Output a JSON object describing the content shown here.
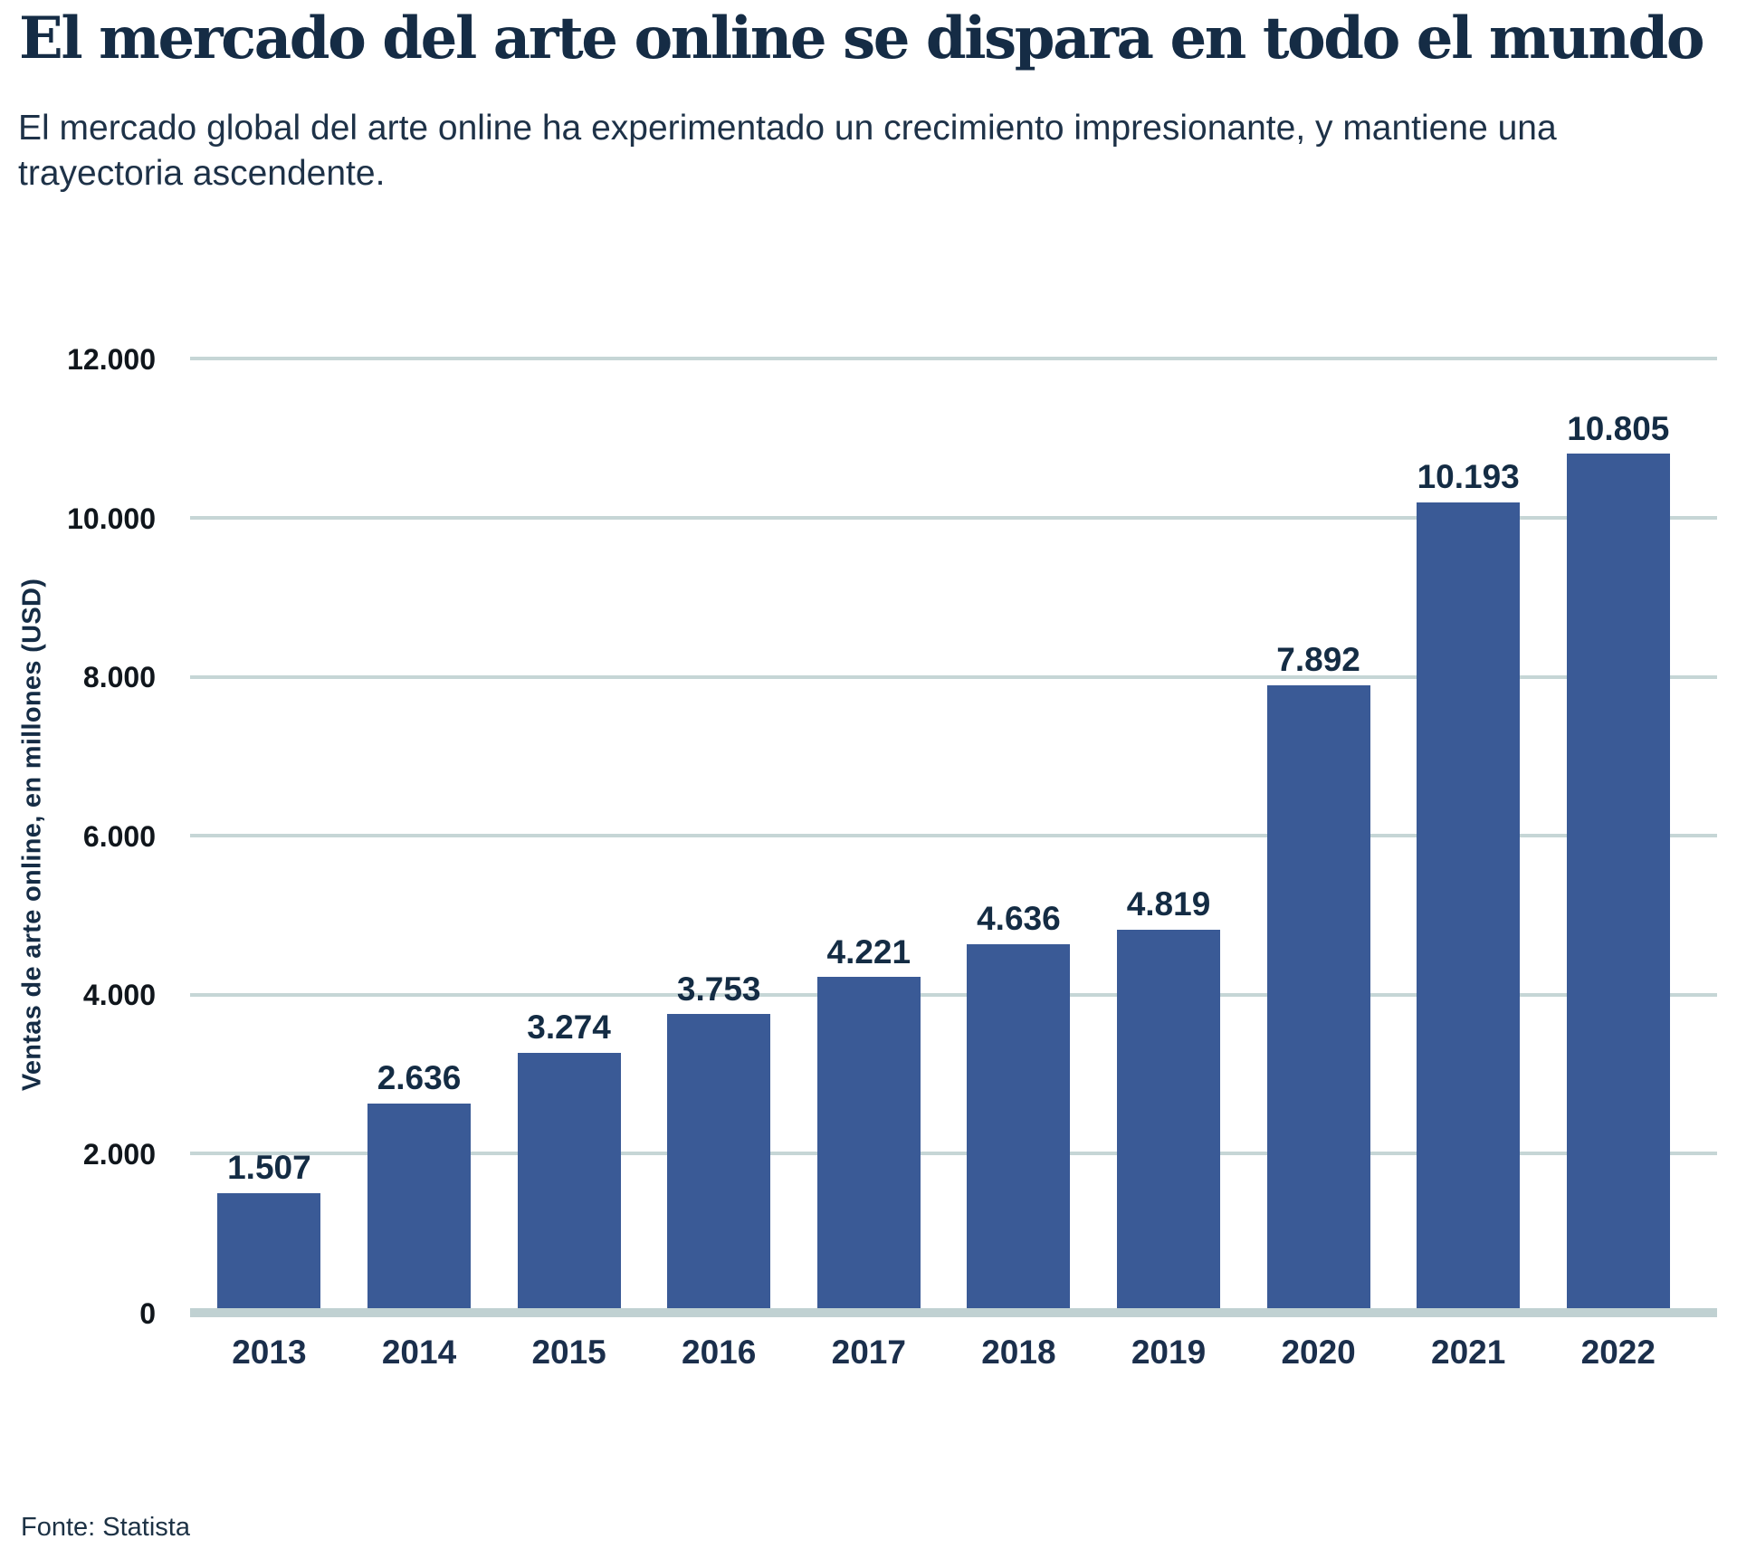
{
  "header": {
    "title": "El mercado del arte online se dispara en todo el mundo",
    "subtitle": "El mercado global del arte online ha experimentado un crecimiento impresionante, y mantiene una trayectoria ascendente."
  },
  "chart_data": {
    "type": "bar",
    "title": "El mercado del arte online se dispara en todo el mundo",
    "subtitle": "El mercado global del arte online ha experimentado un crecimiento impresionante, y mantiene una trayectoria ascendente.",
    "categories": [
      "2013",
      "2014",
      "2015",
      "2016",
      "2017",
      "2018",
      "2019",
      "2020",
      "2021",
      "2022"
    ],
    "values": [
      1507,
      2636,
      3274,
      3753,
      4221,
      4636,
      4819,
      7892,
      10193,
      10805
    ],
    "value_labels": [
      "1.507",
      "2.636",
      "3.274",
      "3.753",
      "4.221",
      "4.636",
      "4.819",
      "7.892",
      "10.193",
      "10.805"
    ],
    "xlabel": "",
    "ylabel": "Ventas de arte online, en millones (USD)",
    "ylim": [
      0,
      12000
    ],
    "yticks": [
      0,
      2000,
      4000,
      6000,
      8000,
      10000,
      12000
    ],
    "ytick_labels": [
      "0",
      "2.000",
      "4.000",
      "6.000",
      "8.000",
      "10.000",
      "12.000"
    ],
    "grid": "horizontal",
    "legend": "none",
    "colors": {
      "bar": "#3a5a96",
      "grid": "#c6d6d6",
      "axis_line": "#c0d1d2",
      "title": "#152c45",
      "subtitle": "#1e3248",
      "ytick": "#10161c",
      "year": "#1b2f4c",
      "value_label": "#142c44",
      "source": "#1d3245"
    }
  },
  "footer": {
    "source": "Fonte: Statista"
  }
}
